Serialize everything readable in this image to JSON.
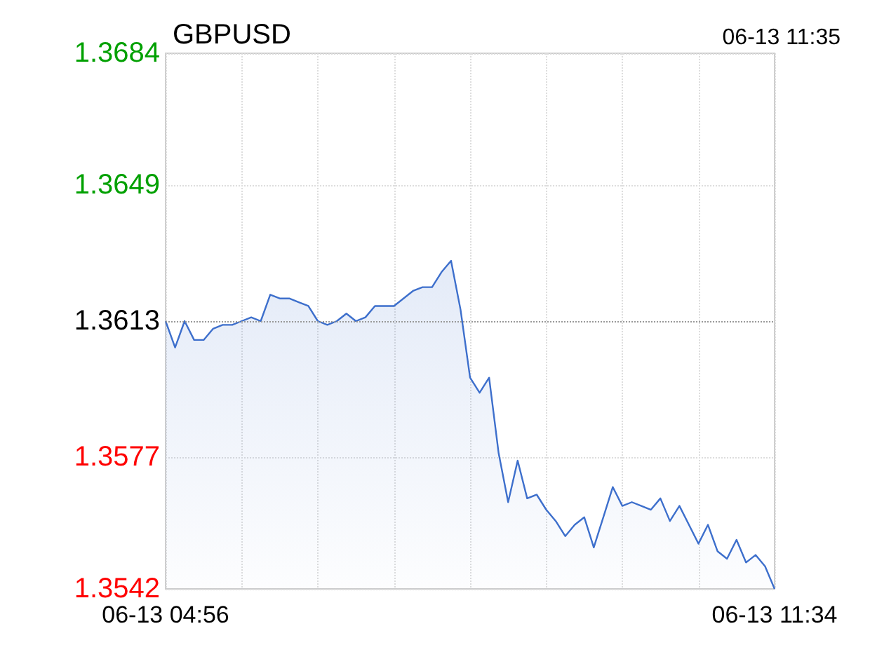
{
  "chart_data": {
    "type": "area",
    "title": "GBPUSD",
    "subtitle": "06-13 11:35",
    "categories": [
      "06-13 04:56",
      null,
      null,
      null,
      null,
      null,
      null,
      null,
      null,
      null,
      null,
      null,
      null,
      null,
      null,
      null,
      null,
      null,
      null,
      null,
      null,
      null,
      null,
      null,
      null,
      null,
      null,
      null,
      null,
      null,
      null,
      null,
      null,
      null,
      null,
      null,
      null,
      null,
      null,
      null,
      null,
      null,
      null,
      null,
      null,
      null,
      null,
      null,
      null,
      null,
      null,
      null,
      null,
      null,
      null,
      null,
      null,
      null,
      null,
      null,
      null,
      null,
      null,
      null,
      "06-13 11:34"
    ],
    "series": [
      {
        "color": "#3d6fcc",
        "values": [
          1.3613,
          1.3606,
          1.3613,
          1.3608,
          1.3608,
          1.3611,
          1.3612,
          1.3612,
          1.3613,
          1.3614,
          1.3613,
          1.362,
          1.3619,
          1.3619,
          1.3618,
          1.3617,
          1.3613,
          1.3612,
          1.3613,
          1.3615,
          1.3613,
          1.3614,
          1.3617,
          1.3617,
          1.3617,
          1.3619,
          1.3621,
          1.3622,
          1.3622,
          1.3626,
          1.3629,
          1.3616,
          1.3598,
          1.3594,
          1.3598,
          1.3578,
          1.3565,
          1.3576,
          1.3566,
          1.3567,
          1.3563,
          1.356,
          1.3556,
          1.3559,
          1.3561,
          1.3553,
          1.3561,
          1.3569,
          1.3564,
          1.3565,
          1.3564,
          1.3563,
          1.3566,
          1.356,
          1.3564,
          1.3559,
          1.3554,
          1.3559,
          1.3552,
          1.355,
          1.3555,
          1.3549,
          1.3551,
          1.3548,
          1.3542
        ]
      }
    ],
    "ylim": [
      1.3542,
      1.3684
    ],
    "yticks": [
      1.3542,
      1.3577,
      1.3613,
      1.3649,
      1.3684
    ],
    "ref_lines": [
      {
        "axis": "y",
        "value": 1.3613,
        "color": "#999999",
        "line_style": "dotted"
      }
    ],
    "grid": true,
    "marker": "none",
    "line_style": "solid"
  }
}
